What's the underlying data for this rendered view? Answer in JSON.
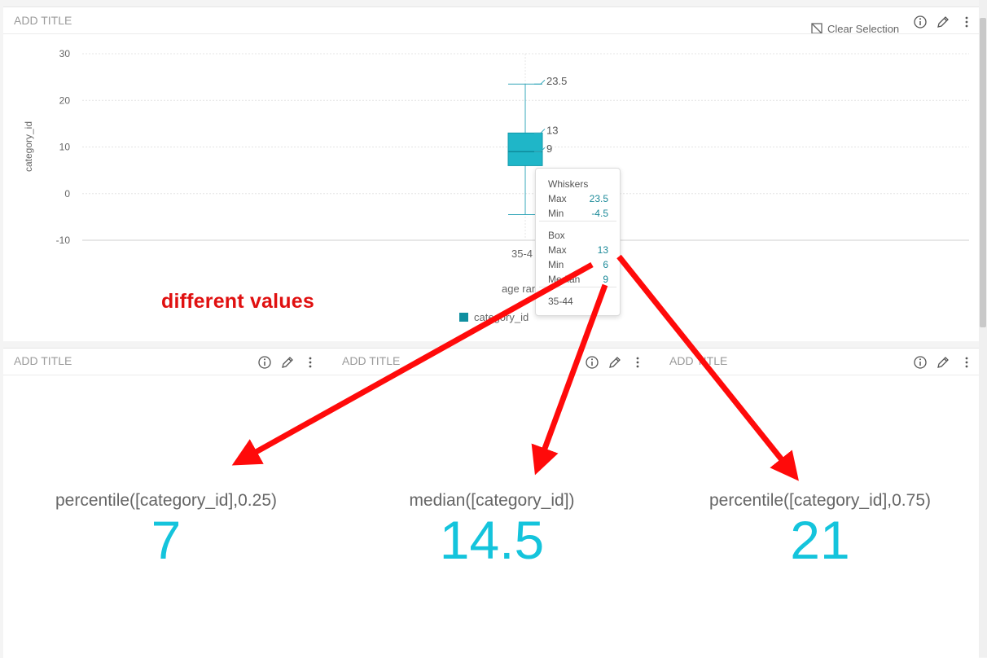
{
  "top_panel": {
    "title": "ADD TITLE",
    "clear_selection": "Clear Selection",
    "icons": [
      "clear-selection-icon",
      "info-icon",
      "pencil-icon",
      "more-vertical-icon"
    ]
  },
  "chart_data": {
    "type": "boxplot",
    "y_label": "category_id",
    "x_label": "age range",
    "categories": [
      "35-44"
    ],
    "y_ticks": [
      "30",
      "20",
      "10",
      "0",
      "-10"
    ],
    "ylim": [
      -10,
      30
    ],
    "grid": true,
    "legend": {
      "position": "bottom",
      "entries": [
        {
          "name": "category_id",
          "color": "#0f8fa0"
        }
      ]
    },
    "series": [
      {
        "name": "category_id",
        "category": "35-44",
        "whisker_max": 23.5,
        "whisker_min": -4.5,
        "box_max": 13,
        "box_min": 6,
        "median": 9
      }
    ],
    "data_labels": [
      "23.5",
      "13",
      "9"
    ],
    "colors": {
      "box": "#1fb6c8",
      "median": "#0e8a9a",
      "whisker": "#3aa9bb"
    }
  },
  "x_axis_visible": {
    "category_label": "35-4",
    "axis_label": "age ran"
  },
  "tooltip": {
    "whiskers_heading": "Whiskers",
    "box_heading": "Box",
    "whisker_rows": [
      {
        "label": "Max",
        "value": "23.5"
      },
      {
        "label": "Min",
        "value": "-4.5"
      }
    ],
    "box_rows": [
      {
        "label": "Max",
        "value": "13"
      },
      {
        "label": "Min",
        "value": "6"
      },
      {
        "label": "Median",
        "value": "9"
      }
    ],
    "category": "35-44"
  },
  "annotation": {
    "text": "different values",
    "color": "#e01010"
  },
  "legend_label": "category_id",
  "kpi_panels": [
    {
      "title": "ADD TITLE",
      "label": "percentile([category_id],0.25)",
      "value": "7"
    },
    {
      "title": "ADD TITLE",
      "label": "median([category_id])",
      "value": "14.5"
    },
    {
      "title": "ADD",
      "title_rest": "TITLE",
      "label": "percentile([category_id],0.75)",
      "value": "21"
    }
  ],
  "accent_color": "#14c4dc"
}
